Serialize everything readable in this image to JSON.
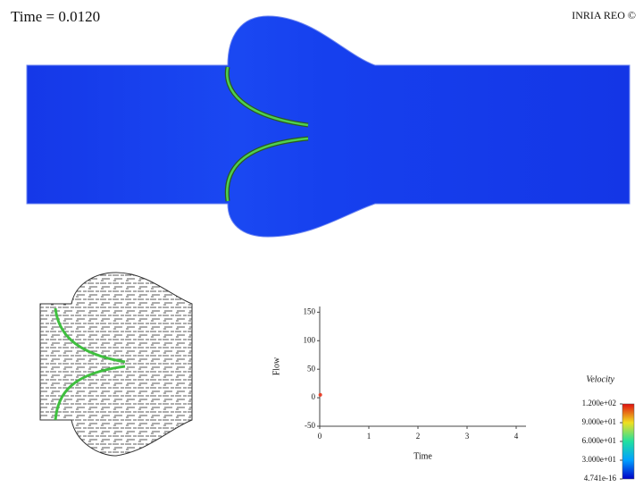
{
  "time_label": "Time = 0.0120",
  "credit": "INRIA REO ©",
  "flow_plot": {
    "type": "scatter",
    "xlabel": "Time",
    "ylabel": "Flow",
    "x": [
      0.012
    ],
    "values": [
      5
    ],
    "color": "#e8402a",
    "xlim": [
      0,
      4.2
    ],
    "ylim": [
      -50,
      160
    ],
    "xticks": [
      0,
      1,
      2,
      3,
      4
    ],
    "yticks": [
      -50,
      0,
      50,
      100,
      150
    ]
  },
  "colorbar": {
    "title": "Velocity",
    "lim": [
      4.741e-16,
      120
    ],
    "ticks": [
      {
        "value": 120,
        "label": "1.200e+02"
      },
      {
        "value": 90,
        "label": "9.000e+01"
      },
      {
        "value": 60,
        "label": "6.000e+01"
      },
      {
        "value": 30,
        "label": "3.000e+01"
      },
      {
        "value": 4.741e-16,
        "label": "4.741e-16"
      }
    ]
  }
}
